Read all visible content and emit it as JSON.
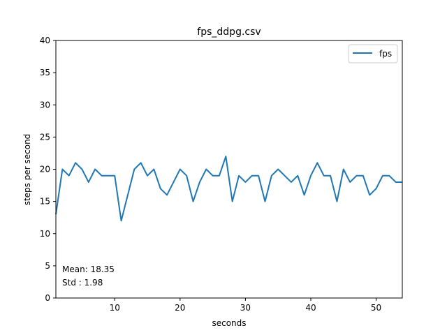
{
  "chart_data": {
    "type": "line",
    "title": "fps_ddpg.csv",
    "xlabel": "seconds",
    "ylabel": "steps per second",
    "xlim": [
      1,
      54
    ],
    "ylim": [
      0,
      40
    ],
    "xticks": [
      10,
      20,
      30,
      40,
      50
    ],
    "yticks": [
      0,
      5,
      10,
      15,
      20,
      25,
      30,
      35,
      40
    ],
    "grid": false,
    "legend": "upper-right",
    "series": [
      {
        "name": "fps",
        "color": "#1f77b4",
        "x": [
          1,
          2,
          3,
          4,
          5,
          6,
          7,
          8,
          9,
          10,
          11,
          12,
          13,
          14,
          15,
          16,
          17,
          18,
          19,
          20,
          21,
          22,
          23,
          24,
          25,
          26,
          27,
          28,
          29,
          30,
          31,
          32,
          33,
          34,
          35,
          36,
          37,
          38,
          39,
          40,
          41,
          42,
          43,
          44,
          45,
          46,
          47,
          48,
          49,
          50,
          51,
          52,
          53,
          54
        ],
        "y": [
          13,
          20,
          19,
          21,
          20,
          18,
          20,
          19,
          19,
          19,
          12,
          16,
          20,
          21,
          19,
          20,
          17,
          16,
          18,
          20,
          19,
          15,
          18,
          20,
          19,
          19,
          22,
          15,
          19,
          18,
          19,
          19,
          15,
          19,
          20,
          19,
          18,
          19,
          16,
          19,
          21,
          19,
          19,
          15,
          20,
          18,
          19,
          19,
          16,
          17,
          19,
          19,
          18,
          18
        ]
      }
    ],
    "annotations": [
      "Mean: 18.35",
      "Std : 1.98"
    ]
  }
}
